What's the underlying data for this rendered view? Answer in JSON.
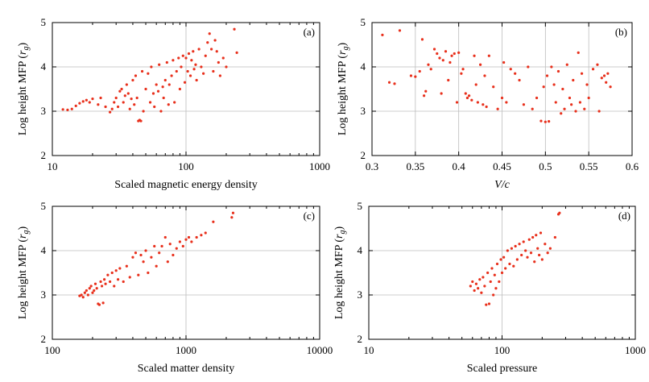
{
  "chart_data": [
    {
      "panel": "(a)",
      "type": "scatter",
      "xlabel": "Scaled magnetic energy density",
      "ylabel": "Log height MFP (r_g)",
      "xscale": "log",
      "xlim": [
        10,
        1000
      ],
      "ylim": [
        2,
        5
      ],
      "xticks": [
        "10",
        "100",
        "1000"
      ],
      "yticks": [
        "2",
        "3",
        "4",
        "5"
      ],
      "grid": true,
      "marker_color": "#e8301c",
      "points": [
        [
          12,
          3.04
        ],
        [
          13,
          3.03
        ],
        [
          14,
          3.05
        ],
        [
          15,
          3.12
        ],
        [
          16,
          3.18
        ],
        [
          17,
          3.22
        ],
        [
          18,
          3.25
        ],
        [
          19,
          3.2
        ],
        [
          20,
          3.28
        ],
        [
          22,
          3.15
        ],
        [
          23,
          3.3
        ],
        [
          25,
          3.1
        ],
        [
          27,
          2.98
        ],
        [
          28,
          3.05
        ],
        [
          29,
          3.2
        ],
        [
          30,
          3.3
        ],
        [
          31,
          3.1
        ],
        [
          32,
          3.45
        ],
        [
          33,
          3.5
        ],
        [
          34,
          3.2
        ],
        [
          35,
          3.35
        ],
        [
          36,
          3.6
        ],
        [
          37,
          3.4
        ],
        [
          38,
          3.05
        ],
        [
          39,
          3.28
        ],
        [
          40,
          3.7
        ],
        [
          41,
          3.15
        ],
        [
          42,
          3.8
        ],
        [
          43,
          3.3
        ],
        [
          44,
          2.78
        ],
        [
          45,
          2.8
        ],
        [
          46,
          2.78
        ],
        [
          47,
          3.9
        ],
        [
          48,
          3.0
        ],
        [
          50,
          3.5
        ],
        [
          52,
          3.85
        ],
        [
          54,
          3.2
        ],
        [
          55,
          4.0
        ],
        [
          57,
          3.4
        ],
        [
          58,
          3.1
        ],
        [
          60,
          3.6
        ],
        [
          62,
          3.45
        ],
        [
          63,
          4.05
        ],
        [
          65,
          3.0
        ],
        [
          67,
          3.55
        ],
        [
          68,
          3.3
        ],
        [
          70,
          3.7
        ],
        [
          72,
          4.1
        ],
        [
          74,
          3.15
        ],
        [
          75,
          3.6
        ],
        [
          78,
          3.8
        ],
        [
          80,
          4.15
        ],
        [
          82,
          3.2
        ],
        [
          85,
          3.9
        ],
        [
          88,
          4.2
        ],
        [
          90,
          3.5
        ],
        [
          92,
          4.0
        ],
        [
          95,
          4.25
        ],
        [
          98,
          3.65
        ],
        [
          100,
          4.2
        ],
        [
          103,
          3.9
        ],
        [
          105,
          4.3
        ],
        [
          108,
          3.8
        ],
        [
          110,
          4.15
        ],
        [
          113,
          4.35
        ],
        [
          115,
          3.95
        ],
        [
          118,
          4.05
        ],
        [
          120,
          3.7
        ],
        [
          125,
          4.4
        ],
        [
          130,
          4.0
        ],
        [
          135,
          3.85
        ],
        [
          140,
          4.25
        ],
        [
          145,
          4.55
        ],
        [
          150,
          4.75
        ],
        [
          155,
          4.4
        ],
        [
          160,
          3.9
        ],
        [
          165,
          4.6
        ],
        [
          170,
          4.35
        ],
        [
          175,
          4.1
        ],
        [
          180,
          3.8
        ],
        [
          190,
          4.2
        ],
        [
          200,
          4.0
        ],
        [
          240,
          4.32
        ],
        [
          230,
          4.85
        ]
      ]
    },
    {
      "panel": "(b)",
      "type": "scatter",
      "xlabel": "V/c",
      "ylabel": "Log height MFP (r_g)",
      "xlim": [
        0.3,
        0.6
      ],
      "ylim": [
        2,
        5
      ],
      "xticks": [
        "0.3",
        "0.35",
        "0.4",
        "0.45",
        "0.5",
        "0.55",
        "0.6"
      ],
      "yticks": [
        "2",
        "3",
        "4",
        "5"
      ],
      "grid": true,
      "marker_color": "#e8301c",
      "points": [
        [
          0.312,
          4.72
        ],
        [
          0.32,
          3.65
        ],
        [
          0.326,
          3.62
        ],
        [
          0.332,
          4.82
        ],
        [
          0.345,
          3.8
        ],
        [
          0.35,
          3.78
        ],
        [
          0.355,
          3.9
        ],
        [
          0.358,
          4.62
        ],
        [
          0.36,
          3.35
        ],
        [
          0.362,
          3.45
        ],
        [
          0.365,
          4.05
        ],
        [
          0.368,
          3.95
        ],
        [
          0.372,
          4.4
        ],
        [
          0.375,
          4.3
        ],
        [
          0.378,
          4.2
        ],
        [
          0.38,
          3.4
        ],
        [
          0.382,
          4.15
        ],
        [
          0.385,
          4.35
        ],
        [
          0.388,
          3.7
        ],
        [
          0.39,
          4.1
        ],
        [
          0.392,
          4.25
        ],
        [
          0.395,
          4.3
        ],
        [
          0.398,
          3.2
        ],
        [
          0.4,
          4.32
        ],
        [
          0.403,
          3.85
        ],
        [
          0.405,
          3.95
        ],
        [
          0.408,
          3.4
        ],
        [
          0.41,
          3.3
        ],
        [
          0.412,
          3.35
        ],
        [
          0.415,
          3.25
        ],
        [
          0.418,
          4.25
        ],
        [
          0.42,
          3.6
        ],
        [
          0.422,
          3.2
        ],
        [
          0.425,
          4.05
        ],
        [
          0.428,
          3.15
        ],
        [
          0.43,
          3.8
        ],
        [
          0.432,
          3.1
        ],
        [
          0.435,
          4.25
        ],
        [
          0.44,
          3.55
        ],
        [
          0.445,
          3.05
        ],
        [
          0.45,
          3.3
        ],
        [
          0.452,
          4.1
        ],
        [
          0.455,
          3.2
        ],
        [
          0.46,
          3.95
        ],
        [
          0.465,
          3.85
        ],
        [
          0.47,
          3.7
        ],
        [
          0.475,
          3.15
        ],
        [
          0.48,
          4.0
        ],
        [
          0.485,
          3.05
        ],
        [
          0.49,
          3.3
        ],
        [
          0.495,
          2.78
        ],
        [
          0.498,
          3.55
        ],
        [
          0.5,
          2.76
        ],
        [
          0.502,
          3.8
        ],
        [
          0.504,
          2.77
        ],
        [
          0.507,
          4.0
        ],
        [
          0.51,
          3.6
        ],
        [
          0.512,
          3.2
        ],
        [
          0.515,
          3.9
        ],
        [
          0.518,
          2.95
        ],
        [
          0.52,
          3.5
        ],
        [
          0.522,
          3.05
        ],
        [
          0.525,
          4.05
        ],
        [
          0.528,
          3.3
        ],
        [
          0.53,
          3.15
        ],
        [
          0.532,
          3.7
        ],
        [
          0.535,
          3.0
        ],
        [
          0.538,
          4.32
        ],
        [
          0.54,
          3.2
        ],
        [
          0.542,
          3.85
        ],
        [
          0.545,
          3.05
        ],
        [
          0.548,
          3.6
        ],
        [
          0.55,
          3.3
        ],
        [
          0.555,
          3.95
        ],
        [
          0.56,
          4.05
        ],
        [
          0.562,
          3.0
        ],
        [
          0.565,
          3.75
        ],
        [
          0.568,
          3.8
        ],
        [
          0.57,
          3.65
        ],
        [
          0.572,
          3.85
        ],
        [
          0.575,
          3.55
        ]
      ]
    },
    {
      "panel": "(c)",
      "type": "scatter",
      "xlabel": "Scaled matter density",
      "ylabel": "Log height MFP (r_g)",
      "xscale": "log",
      "xlim": [
        100,
        10000
      ],
      "ylim": [
        2,
        5
      ],
      "xticks": [
        "100",
        "1000",
        "10000"
      ],
      "yticks": [
        "2",
        "3",
        "4",
        "5"
      ],
      "grid": true,
      "marker_color": "#e8301c",
      "points": [
        [
          160,
          2.98
        ],
        [
          165,
          3.0
        ],
        [
          170,
          2.95
        ],
        [
          175,
          3.05
        ],
        [
          180,
          3.1
        ],
        [
          185,
          3.0
        ],
        [
          190,
          3.15
        ],
        [
          195,
          3.2
        ],
        [
          200,
          3.05
        ],
        [
          205,
          3.1
        ],
        [
          210,
          3.25
        ],
        [
          215,
          3.15
        ],
        [
          220,
          2.8
        ],
        [
          225,
          2.78
        ],
        [
          230,
          3.3
        ],
        [
          235,
          3.2
        ],
        [
          240,
          2.82
        ],
        [
          245,
          3.35
        ],
        [
          250,
          3.25
        ],
        [
          260,
          3.45
        ],
        [
          270,
          3.3
        ],
        [
          280,
          3.5
        ],
        [
          290,
          3.2
        ],
        [
          300,
          3.55
        ],
        [
          310,
          3.35
        ],
        [
          320,
          3.6
        ],
        [
          340,
          3.3
        ],
        [
          360,
          3.65
        ],
        [
          380,
          3.4
        ],
        [
          400,
          3.85
        ],
        [
          420,
          3.95
        ],
        [
          440,
          3.45
        ],
        [
          460,
          3.9
        ],
        [
          480,
          3.75
        ],
        [
          500,
          4.0
        ],
        [
          520,
          3.5
        ],
        [
          550,
          3.85
        ],
        [
          580,
          4.1
        ],
        [
          600,
          3.65
        ],
        [
          630,
          3.95
        ],
        [
          660,
          4.1
        ],
        [
          700,
          4.3
        ],
        [
          730,
          3.75
        ],
        [
          760,
          4.15
        ],
        [
          800,
          3.9
        ],
        [
          850,
          4.05
        ],
        [
          900,
          4.2
        ],
        [
          950,
          4.1
        ],
        [
          1000,
          4.25
        ],
        [
          1050,
          4.3
        ],
        [
          1100,
          4.2
        ],
        [
          1200,
          4.3
        ],
        [
          1300,
          4.35
        ],
        [
          1400,
          4.4
        ],
        [
          1600,
          4.65
        ],
        [
          2200,
          4.75
        ],
        [
          2250,
          4.85
        ]
      ]
    },
    {
      "panel": "(d)",
      "type": "scatter",
      "xlabel": "Scaled pressure",
      "ylabel": "Log height MFP (r_g)",
      "xscale": "log",
      "xlim": [
        10,
        1000
      ],
      "ylim": [
        2,
        5
      ],
      "xticks": [
        "10",
        "100",
        "1000"
      ],
      "yticks": [
        "2",
        "3",
        "4",
        "5"
      ],
      "grid": true,
      "marker_color": "#e8301c",
      "points": [
        [
          58,
          3.2
        ],
        [
          60,
          3.3
        ],
        [
          62,
          3.1
        ],
        [
          64,
          3.25
        ],
        [
          66,
          3.15
        ],
        [
          68,
          3.35
        ],
        [
          70,
          3.05
        ],
        [
          72,
          3.4
        ],
        [
          74,
          3.2
        ],
        [
          76,
          2.78
        ],
        [
          78,
          3.5
        ],
        [
          80,
          2.8
        ],
        [
          82,
          3.3
        ],
        [
          84,
          3.6
        ],
        [
          86,
          3.0
        ],
        [
          88,
          3.45
        ],
        [
          90,
          3.15
        ],
        [
          92,
          3.7
        ],
        [
          95,
          3.3
        ],
        [
          98,
          3.8
        ],
        [
          100,
          3.5
        ],
        [
          103,
          3.85
        ],
        [
          106,
          3.6
        ],
        [
          110,
          4.0
        ],
        [
          114,
          3.7
        ],
        [
          118,
          4.05
        ],
        [
          122,
          3.65
        ],
        [
          126,
          4.1
        ],
        [
          130,
          3.8
        ],
        [
          135,
          4.15
        ],
        [
          140,
          3.9
        ],
        [
          145,
          4.2
        ],
        [
          150,
          4.0
        ],
        [
          155,
          3.85
        ],
        [
          160,
          4.25
        ],
        [
          165,
          3.95
        ],
        [
          170,
          4.3
        ],
        [
          175,
          3.75
        ],
        [
          180,
          4.35
        ],
        [
          185,
          4.05
        ],
        [
          190,
          3.9
        ],
        [
          195,
          4.4
        ],
        [
          200,
          3.8
        ],
        [
          210,
          4.15
        ],
        [
          220,
          3.95
        ],
        [
          230,
          4.05
        ],
        [
          250,
          4.3
        ],
        [
          270,
          4.85
        ],
        [
          265,
          4.82
        ]
      ]
    }
  ]
}
